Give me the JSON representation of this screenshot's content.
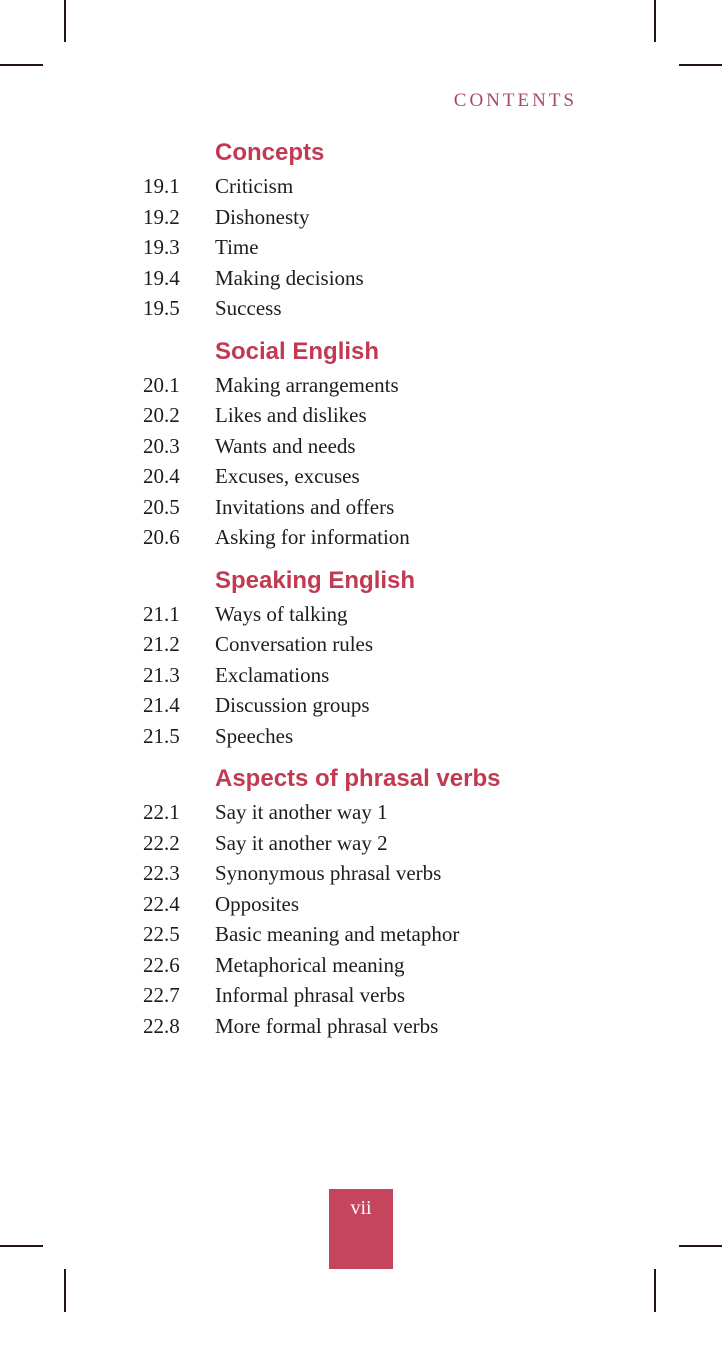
{
  "page": {
    "header": "CONTENTS",
    "page_number": "vii"
  },
  "sections": [
    {
      "heading": "Concepts",
      "items": [
        {
          "num": "19.1",
          "title": "Criticism"
        },
        {
          "num": "19.2",
          "title": "Dishonesty"
        },
        {
          "num": "19.3",
          "title": "Time"
        },
        {
          "num": "19.4",
          "title": "Making decisions"
        },
        {
          "num": "19.5",
          "title": "Success"
        }
      ]
    },
    {
      "heading": "Social English",
      "items": [
        {
          "num": "20.1",
          "title": "Making arrangements"
        },
        {
          "num": "20.2",
          "title": "Likes and dislikes"
        },
        {
          "num": "20.3",
          "title": "Wants and needs"
        },
        {
          "num": "20.4",
          "title": "Excuses, excuses"
        },
        {
          "num": "20.5",
          "title": "Invitations and offers"
        },
        {
          "num": "20.6",
          "title": "Asking for information"
        }
      ]
    },
    {
      "heading": "Speaking English",
      "items": [
        {
          "num": "21.1",
          "title": "Ways of talking"
        },
        {
          "num": "21.2",
          "title": "Conversation rules"
        },
        {
          "num": "21.3",
          "title": "Exclamations"
        },
        {
          "num": "21.4",
          "title": "Discussion groups"
        },
        {
          "num": "21.5",
          "title": "Speeches"
        }
      ]
    },
    {
      "heading": "Aspects of phrasal verbs",
      "items": [
        {
          "num": "22.1",
          "title": "Say it another way 1"
        },
        {
          "num": "22.2",
          "title": "Say it another way 2"
        },
        {
          "num": "22.3",
          "title": "Synonymous phrasal verbs"
        },
        {
          "num": "22.4",
          "title": "Opposites"
        },
        {
          "num": "22.5",
          "title": "Basic meaning and metaphor"
        },
        {
          "num": "22.6",
          "title": "Metaphorical meaning"
        },
        {
          "num": "22.7",
          "title": "Informal phrasal verbs"
        },
        {
          "num": "22.8",
          "title": "More formal phrasal verbs"
        }
      ]
    }
  ],
  "colors": {
    "heading_red": "#c23a52",
    "header_red": "#a84a62",
    "badge_red": "#c5455c",
    "body_text": "#1e1c1c",
    "crop_mark": "#241418"
  }
}
